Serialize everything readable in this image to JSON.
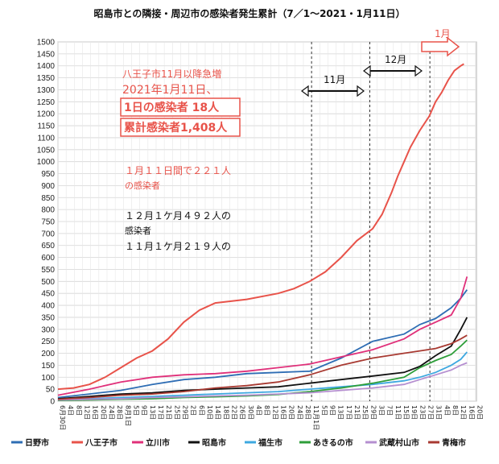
{
  "title": "昭島市との隣接・周辺市の感染者発生累計（7／1～2021・1月11日）",
  "chart_data": {
    "type": "line",
    "title": "昭島市との隣接・周辺市の感染者発生累計（7／1～2021・1月11日）",
    "ylim": [
      0,
      1500
    ],
    "yticks": [
      0,
      50,
      100,
      150,
      200,
      250,
      300,
      350,
      400,
      450,
      500,
      550,
      600,
      650,
      700,
      750,
      800,
      850,
      900,
      950,
      1000,
      1050,
      1100,
      1150,
      1200,
      1250,
      1300,
      1350,
      1400,
      1450,
      1500
    ],
    "grid": true,
    "legend_position": "bottom",
    "x_tick_labels": [
      "6月30日",
      "4日",
      "8日",
      "12日",
      "16日",
      "20日",
      "24日",
      "28日",
      "8月1日",
      "5日",
      "9日",
      "13日",
      "17日",
      "21日",
      "25日",
      "29日",
      "2日",
      "6日",
      "10日",
      "14日",
      "18日",
      "22日",
      "26日",
      "30日",
      "4日",
      "8日",
      "12日",
      "16日",
      "20日",
      "24日",
      "28日",
      "11月1日",
      "5日",
      "9日",
      "13日",
      "17日",
      "21日",
      "25日",
      "29日",
      "3日",
      "7日",
      "11日",
      "15日",
      "19日",
      "23日",
      "27日",
      "31日",
      "4日",
      "8日",
      "12日",
      "16日",
      "20日"
    ],
    "series": [
      {
        "name": "日野市",
        "color": "#2e6db4",
        "points": [
          [
            0,
            15
          ],
          [
            10,
            30
          ],
          [
            20,
            45
          ],
          [
            30,
            70
          ],
          [
            40,
            90
          ],
          [
            50,
            100
          ],
          [
            60,
            115
          ],
          [
            70,
            120
          ],
          [
            80,
            125
          ],
          [
            90,
            180
          ],
          [
            100,
            250
          ],
          [
            110,
            280
          ],
          [
            115,
            320
          ],
          [
            120,
            345
          ],
          [
            125,
            390
          ],
          [
            128,
            430
          ],
          [
            130,
            465
          ]
        ]
      },
      {
        "name": "八王子市",
        "color": "#e8534a",
        "points": [
          [
            0,
            50
          ],
          [
            5,
            55
          ],
          [
            10,
            70
          ],
          [
            15,
            100
          ],
          [
            20,
            140
          ],
          [
            25,
            180
          ],
          [
            30,
            210
          ],
          [
            35,
            260
          ],
          [
            40,
            330
          ],
          [
            45,
            380
          ],
          [
            50,
            410
          ],
          [
            60,
            425
          ],
          [
            70,
            450
          ],
          [
            75,
            470
          ],
          [
            80,
            500
          ],
          [
            85,
            540
          ],
          [
            90,
            600
          ],
          [
            95,
            670
          ],
          [
            100,
            720
          ],
          [
            103,
            780
          ],
          [
            106,
            870
          ],
          [
            108,
            940
          ],
          [
            110,
            1000
          ],
          [
            112,
            1060
          ],
          [
            115,
            1130
          ],
          [
            118,
            1190
          ],
          [
            120,
            1250
          ],
          [
            122,
            1290
          ],
          [
            124,
            1340
          ],
          [
            126,
            1380
          ],
          [
            128,
            1400
          ],
          [
            129,
            1408
          ]
        ]
      },
      {
        "name": "立川市",
        "color": "#e0307a",
        "points": [
          [
            0,
            25
          ],
          [
            10,
            50
          ],
          [
            20,
            80
          ],
          [
            30,
            100
          ],
          [
            40,
            110
          ],
          [
            50,
            115
          ],
          [
            60,
            125
          ],
          [
            70,
            140
          ],
          [
            80,
            155
          ],
          [
            90,
            185
          ],
          [
            100,
            215
          ],
          [
            110,
            260
          ],
          [
            115,
            300
          ],
          [
            120,
            330
          ],
          [
            125,
            360
          ],
          [
            128,
            430
          ],
          [
            130,
            520
          ]
        ]
      },
      {
        "name": "昭島市",
        "color": "#111111",
        "points": [
          [
            0,
            10
          ],
          [
            10,
            20
          ],
          [
            20,
            30
          ],
          [
            30,
            35
          ],
          [
            40,
            45
          ],
          [
            50,
            50
          ],
          [
            60,
            55
          ],
          [
            70,
            60
          ],
          [
            80,
            75
          ],
          [
            90,
            90
          ],
          [
            100,
            105
          ],
          [
            110,
            120
          ],
          [
            115,
            145
          ],
          [
            120,
            190
          ],
          [
            125,
            230
          ],
          [
            128,
            300
          ],
          [
            130,
            350
          ]
        ]
      },
      {
        "name": "福生市",
        "color": "#3ea8e0",
        "points": [
          [
            0,
            5
          ],
          [
            10,
            10
          ],
          [
            20,
            15
          ],
          [
            30,
            20
          ],
          [
            40,
            25
          ],
          [
            50,
            30
          ],
          [
            60,
            35
          ],
          [
            70,
            40
          ],
          [
            80,
            50
          ],
          [
            90,
            60
          ],
          [
            100,
            70
          ],
          [
            110,
            85
          ],
          [
            115,
            100
          ],
          [
            120,
            120
          ],
          [
            125,
            150
          ],
          [
            128,
            175
          ],
          [
            130,
            205
          ]
        ]
      },
      {
        "name": "あきるの市",
        "color": "#2e9e3a",
        "points": [
          [
            0,
            3
          ],
          [
            10,
            5
          ],
          [
            20,
            8
          ],
          [
            30,
            10
          ],
          [
            40,
            15
          ],
          [
            50,
            18
          ],
          [
            60,
            22
          ],
          [
            70,
            28
          ],
          [
            80,
            40
          ],
          [
            90,
            55
          ],
          [
            100,
            75
          ],
          [
            110,
            100
          ],
          [
            115,
            140
          ],
          [
            120,
            170
          ],
          [
            125,
            195
          ],
          [
            128,
            230
          ],
          [
            130,
            255
          ]
        ]
      },
      {
        "name": "武蔵村山市",
        "color": "#b58fd0",
        "points": [
          [
            0,
            5
          ],
          [
            10,
            8
          ],
          [
            20,
            10
          ],
          [
            30,
            15
          ],
          [
            40,
            18
          ],
          [
            50,
            22
          ],
          [
            60,
            25
          ],
          [
            70,
            30
          ],
          [
            80,
            35
          ],
          [
            90,
            45
          ],
          [
            100,
            55
          ],
          [
            110,
            70
          ],
          [
            115,
            90
          ],
          [
            120,
            110
          ],
          [
            125,
            130
          ],
          [
            128,
            150
          ],
          [
            130,
            160
          ]
        ]
      },
      {
        "name": "青梅市",
        "color": "#a83a32",
        "points": [
          [
            0,
            8
          ],
          [
            10,
            15
          ],
          [
            20,
            25
          ],
          [
            30,
            30
          ],
          [
            40,
            40
          ],
          [
            50,
            55
          ],
          [
            60,
            65
          ],
          [
            70,
            80
          ],
          [
            80,
            110
          ],
          [
            90,
            150
          ],
          [
            100,
            180
          ],
          [
            110,
            200
          ],
          [
            115,
            210
          ],
          [
            120,
            220
          ],
          [
            125,
            240
          ],
          [
            128,
            260
          ],
          [
            130,
            275
          ]
        ]
      }
    ],
    "annotations": {
      "hachioji_line1": "八王子市11月以降急増",
      "hachioji_line2": "2021年1月11日、",
      "box1": "1日の感染者  18人",
      "box2": "累計感染者1,408人",
      "jan_a": "１月１１日間で２２１人",
      "jan_b": "の感染者",
      "dec_a": "１２月１ケ月４９２人の",
      "dec_b": "感染者",
      "nov_a": "１１月１ケ月２１９人の",
      "month_nov": "11月",
      "month_dec": "12月",
      "month_jan": "1月"
    }
  }
}
